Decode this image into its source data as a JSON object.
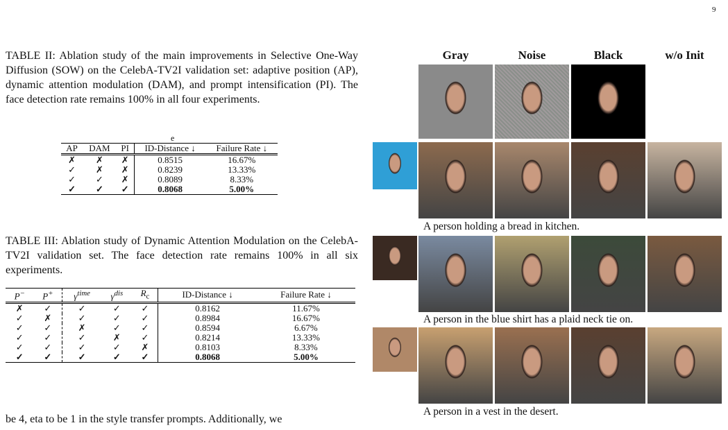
{
  "page_number": "9",
  "table2": {
    "caption": "TABLE II: Ablation study of the main improvements in Selective One-Way Diffusion (SOW) on the CelebA-TV2I validation set: adaptive position (AP), dynamic attention modulation (DAM), and prompt intensification (PI). The face detection rate remains 100% in all four experiments.",
    "stray": "e",
    "headers": [
      "AP",
      "DAM",
      "PI",
      "ID-Distance ↓",
      "Failure Rate ↓"
    ],
    "rows": [
      [
        "✗",
        "✗",
        "✗",
        "0.8515",
        "16.67%"
      ],
      [
        "✓",
        "✗",
        "✗",
        "0.8239",
        "13.33%"
      ],
      [
        "✓",
        "✓",
        "✗",
        "0.8089",
        "8.33%"
      ],
      [
        "✓",
        "✓",
        "✓",
        "0.8068",
        "5.00%"
      ]
    ]
  },
  "table3": {
    "caption": "TABLE III: Ablation study of Dynamic Attention Modulation on the CelebA-TV2I validation set. The face detection rate remains 100% in all six experiments.",
    "headers": [
      {
        "base": "P",
        "sup": "−"
      },
      {
        "base": "P",
        "sup": "+"
      },
      {
        "base": "γ",
        "sup": "time"
      },
      {
        "base": "γ",
        "sup": "dis"
      },
      {
        "base": "R",
        "sub": "c"
      },
      {
        "base": "ID-Distance ↓"
      },
      {
        "base": "Failure Rate ↓"
      }
    ],
    "rows": [
      [
        "✗",
        "✓",
        "✓",
        "✓",
        "✓",
        "0.8162",
        "11.67%"
      ],
      [
        "✓",
        "✗",
        "✓",
        "✓",
        "✓",
        "0.8984",
        "16.67%"
      ],
      [
        "✓",
        "✓",
        "✗",
        "✓",
        "✓",
        "0.8594",
        "6.67%"
      ],
      [
        "✓",
        "✓",
        "✓",
        "✗",
        "✓",
        "0.8214",
        "13.33%"
      ],
      [
        "✓",
        "✓",
        "✓",
        "✓",
        "✗",
        "0.8103",
        "8.33%"
      ],
      [
        "✓",
        "✓",
        "✓",
        "✓",
        "✓",
        "0.8068",
        "5.00%"
      ]
    ]
  },
  "body_text": "be 4, eta to be 1 in the style transfer prompts. Additionally, we",
  "figure": {
    "column_headers": [
      "Gray",
      "Noise",
      "Black",
      "w/o Init"
    ],
    "captions": [
      "A person holding a bread in kitchen.",
      "A person in the blue shirt has a plaid neck tie on.",
      "A person in a vest in the desert."
    ]
  }
}
